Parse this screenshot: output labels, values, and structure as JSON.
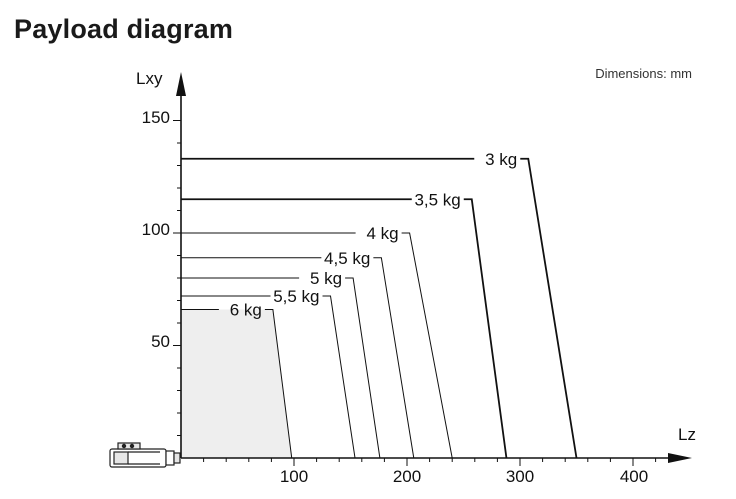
{
  "title": "Payload diagram",
  "note": "Dimensions: mm",
  "chart_data": {
    "type": "line",
    "xlabel": "Lz",
    "ylabel": "Lxy",
    "xlim": [
      0,
      450
    ],
    "ylim": [
      0,
      160
    ],
    "x_ticks": [
      "100",
      "200",
      "300",
      "400"
    ],
    "y_ticks": [
      "50",
      "100",
      "150"
    ],
    "series": [
      {
        "name": "3 kg",
        "lxy": 133,
        "lz_start": 302,
        "lz_end": 350
      },
      {
        "name": "3,5 kg",
        "lxy": 115,
        "lz_start": 252,
        "lz_end": 288
      },
      {
        "name": "4 kg",
        "lxy": 100,
        "lz_start": 197,
        "lz_end": 240
      },
      {
        "name": "4,5 kg",
        "lxy": 89,
        "lz_start": 172,
        "lz_end": 206
      },
      {
        "name": "5 kg",
        "lxy": 80,
        "lz_start": 147,
        "lz_end": 176
      },
      {
        "name": "5,5 kg",
        "lxy": 72,
        "lz_start": 127,
        "lz_end": 154
      },
      {
        "name": "6 kg",
        "lxy": 66,
        "lz_start": 76,
        "lz_end": 98
      }
    ]
  }
}
